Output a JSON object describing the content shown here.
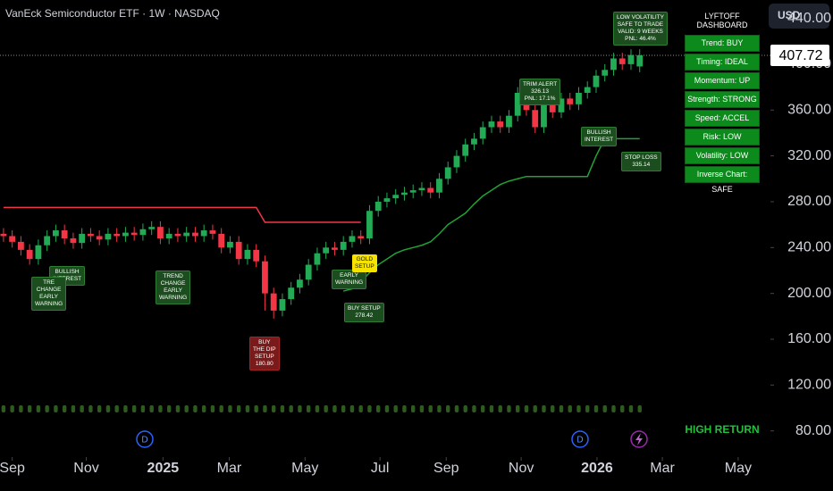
{
  "chart_data": {
    "type": "candlestick",
    "title": "VanEck Semiconductor ETF · 1W · NASDAQ",
    "currency": "USD",
    "last_price": 407.72,
    "up_color": "#22ab54",
    "down_color": "#f23645",
    "candles": {
      "open": [
        252,
        250,
        245,
        238,
        230,
        242,
        250,
        255,
        248,
        244,
        252,
        250,
        247,
        252,
        250,
        253,
        251,
        256,
        258,
        248,
        252,
        250,
        253,
        250,
        255,
        252,
        240,
        245,
        230,
        238,
        228,
        200,
        185,
        195,
        205,
        212,
        225,
        235,
        240,
        238,
        245,
        250,
        248,
        272,
        280,
        283,
        286,
        288,
        290,
        292,
        288,
        300,
        310,
        320,
        330,
        335,
        345,
        350,
        345,
        355,
        375,
        360,
        345,
        365,
        358,
        370,
        365,
        375,
        380,
        390,
        395,
        405,
        400,
        398
      ],
      "high": [
        257,
        255,
        250,
        243,
        247,
        255,
        260,
        260,
        253,
        257,
        257,
        255,
        257,
        257,
        258,
        258,
        261,
        263,
        263,
        257,
        257,
        258,
        258,
        260,
        260,
        257,
        250,
        250,
        243,
        243,
        233,
        205,
        200,
        210,
        217,
        230,
        240,
        245,
        245,
        250,
        255,
        255,
        277,
        285,
        288,
        291,
        293,
        295,
        297,
        297,
        305,
        315,
        325,
        335,
        340,
        350,
        355,
        355,
        360,
        380,
        380,
        365,
        370,
        370,
        375,
        375,
        380,
        385,
        395,
        400,
        410,
        410,
        413,
        413
      ],
      "low": [
        245,
        240,
        233,
        225,
        225,
        237,
        245,
        243,
        239,
        239,
        245,
        242,
        242,
        245,
        245,
        246,
        246,
        251,
        243,
        243,
        245,
        245,
        245,
        245,
        247,
        235,
        235,
        225,
        225,
        223,
        185,
        178,
        180,
        190,
        200,
        207,
        220,
        230,
        233,
        233,
        240,
        243,
        243,
        267,
        275,
        278,
        281,
        283,
        285,
        283,
        283,
        295,
        305,
        315,
        325,
        330,
        340,
        340,
        340,
        350,
        355,
        340,
        340,
        353,
        353,
        360,
        360,
        370,
        375,
        385,
        390,
        395,
        395,
        393
      ],
      "close": [
        250,
        245,
        238,
        230,
        242,
        250,
        255,
        248,
        244,
        252,
        250,
        247,
        252,
        250,
        253,
        251,
        256,
        258,
        248,
        252,
        250,
        253,
        250,
        255,
        252,
        240,
        245,
        230,
        238,
        228,
        200,
        185,
        195,
        205,
        212,
        225,
        235,
        240,
        238,
        245,
        250,
        248,
        272,
        280,
        283,
        286,
        288,
        290,
        292,
        288,
        300,
        310,
        320,
        330,
        335,
        345,
        350,
        345,
        355,
        375,
        360,
        345,
        365,
        358,
        370,
        365,
        375,
        380,
        390,
        395,
        405,
        400,
        408,
        407.72
      ]
    },
    "series": [
      {
        "name": "Resistance",
        "color": "#f23645",
        "values": [
          275,
          275,
          275,
          275,
          275,
          275,
          275,
          275,
          275,
          275,
          275,
          275,
          275,
          275,
          275,
          275,
          275,
          275,
          275,
          275,
          275,
          275,
          275,
          275,
          275,
          275,
          275,
          275,
          275,
          275,
          262,
          262,
          262,
          262,
          262,
          262,
          262,
          262,
          262,
          262,
          262,
          262,
          null,
          null,
          null,
          null,
          null,
          null,
          null,
          null,
          null,
          null,
          null,
          null,
          null,
          null,
          null,
          null,
          null,
          null,
          null,
          null,
          null,
          null,
          null,
          null,
          null,
          null,
          null,
          null,
          null,
          null,
          null,
          null
        ]
      },
      {
        "name": "Stop",
        "color": "#1fa334",
        "values": [
          null,
          null,
          null,
          null,
          null,
          null,
          null,
          null,
          null,
          null,
          null,
          null,
          null,
          null,
          null,
          null,
          null,
          null,
          null,
          null,
          null,
          null,
          null,
          null,
          null,
          null,
          null,
          null,
          null,
          null,
          null,
          null,
          null,
          null,
          null,
          null,
          null,
          null,
          null,
          202,
          204,
          210,
          218,
          225,
          230,
          235,
          238,
          240,
          242,
          245,
          252,
          260,
          265,
          270,
          278,
          285,
          290,
          295,
          298,
          300,
          302,
          302,
          302,
          302,
          302,
          302,
          302,
          302,
          320,
          335,
          335,
          335,
          335,
          335
        ]
      }
    ],
    "xlim": [
      -0.4,
      88
    ],
    "xticks": [
      {
        "value": 1,
        "label": "Sep"
      },
      {
        "value": 9.5,
        "label": "Nov"
      },
      {
        "value": 18.3,
        "label": "2025"
      },
      {
        "value": 25.9,
        "label": "Mar"
      },
      {
        "value": 34.6,
        "label": "May"
      },
      {
        "value": 43.2,
        "label": "Jul"
      },
      {
        "value": 50.8,
        "label": "Sep"
      },
      {
        "value": 59.4,
        "label": "Nov"
      },
      {
        "value": 68.1,
        "label": "2026"
      },
      {
        "value": 75.6,
        "label": "Mar"
      },
      {
        "value": 84.3,
        "label": "May"
      }
    ],
    "ylim": [
      71.2,
      456
    ],
    "yticks": [
      {
        "value": 80,
        "label": "80.00"
      },
      {
        "value": 120,
        "label": "120.00"
      },
      {
        "value": 160,
        "label": "160.00"
      },
      {
        "value": 200,
        "label": "200.00"
      },
      {
        "value": 240,
        "label": "240.00"
      },
      {
        "value": 280,
        "label": "280.00"
      },
      {
        "value": 320,
        "label": "320.00"
      },
      {
        "value": 360,
        "label": "360.00"
      },
      {
        "value": 400,
        "label": "400.00"
      },
      {
        "value": 440,
        "label": "440.00"
      }
    ],
    "annotations": [
      "BULLISH\nINTEREST",
      "TRE\nCHANGE\nEARLY\nWARNING",
      "TREND\nCHANGE\nEARLY\nWARNING",
      "BUY\nTHE DIP\nSETUP\n180.80",
      "EARLY\nWARNING",
      "GOLD\nSETUP",
      "BUY SETUP\n278.42",
      "TRIM ALERT\n326.13\nPNL: 17.1%",
      "BULLISH\nINTEREST",
      "STOP LOSS\n335.14",
      "LOW VOLATILITY\nSAFE TO TRADE\nVALID: 9 WEEKS\nPNL: 46.4%"
    ],
    "events": [
      "D",
      "D"
    ],
    "dashboard": {
      "title": "LYFTOFF\nDASHBOARD",
      "rows": [
        "Trend: BUY",
        "Timing: IDEAL",
        "Momentum: UP",
        "Strength: STRONG",
        "Speed: ACCEL",
        "Risk: LOW",
        "Volatility: LOW",
        "Inverse Chart: SAFE"
      ]
    },
    "status": "HIGH RETURN"
  }
}
